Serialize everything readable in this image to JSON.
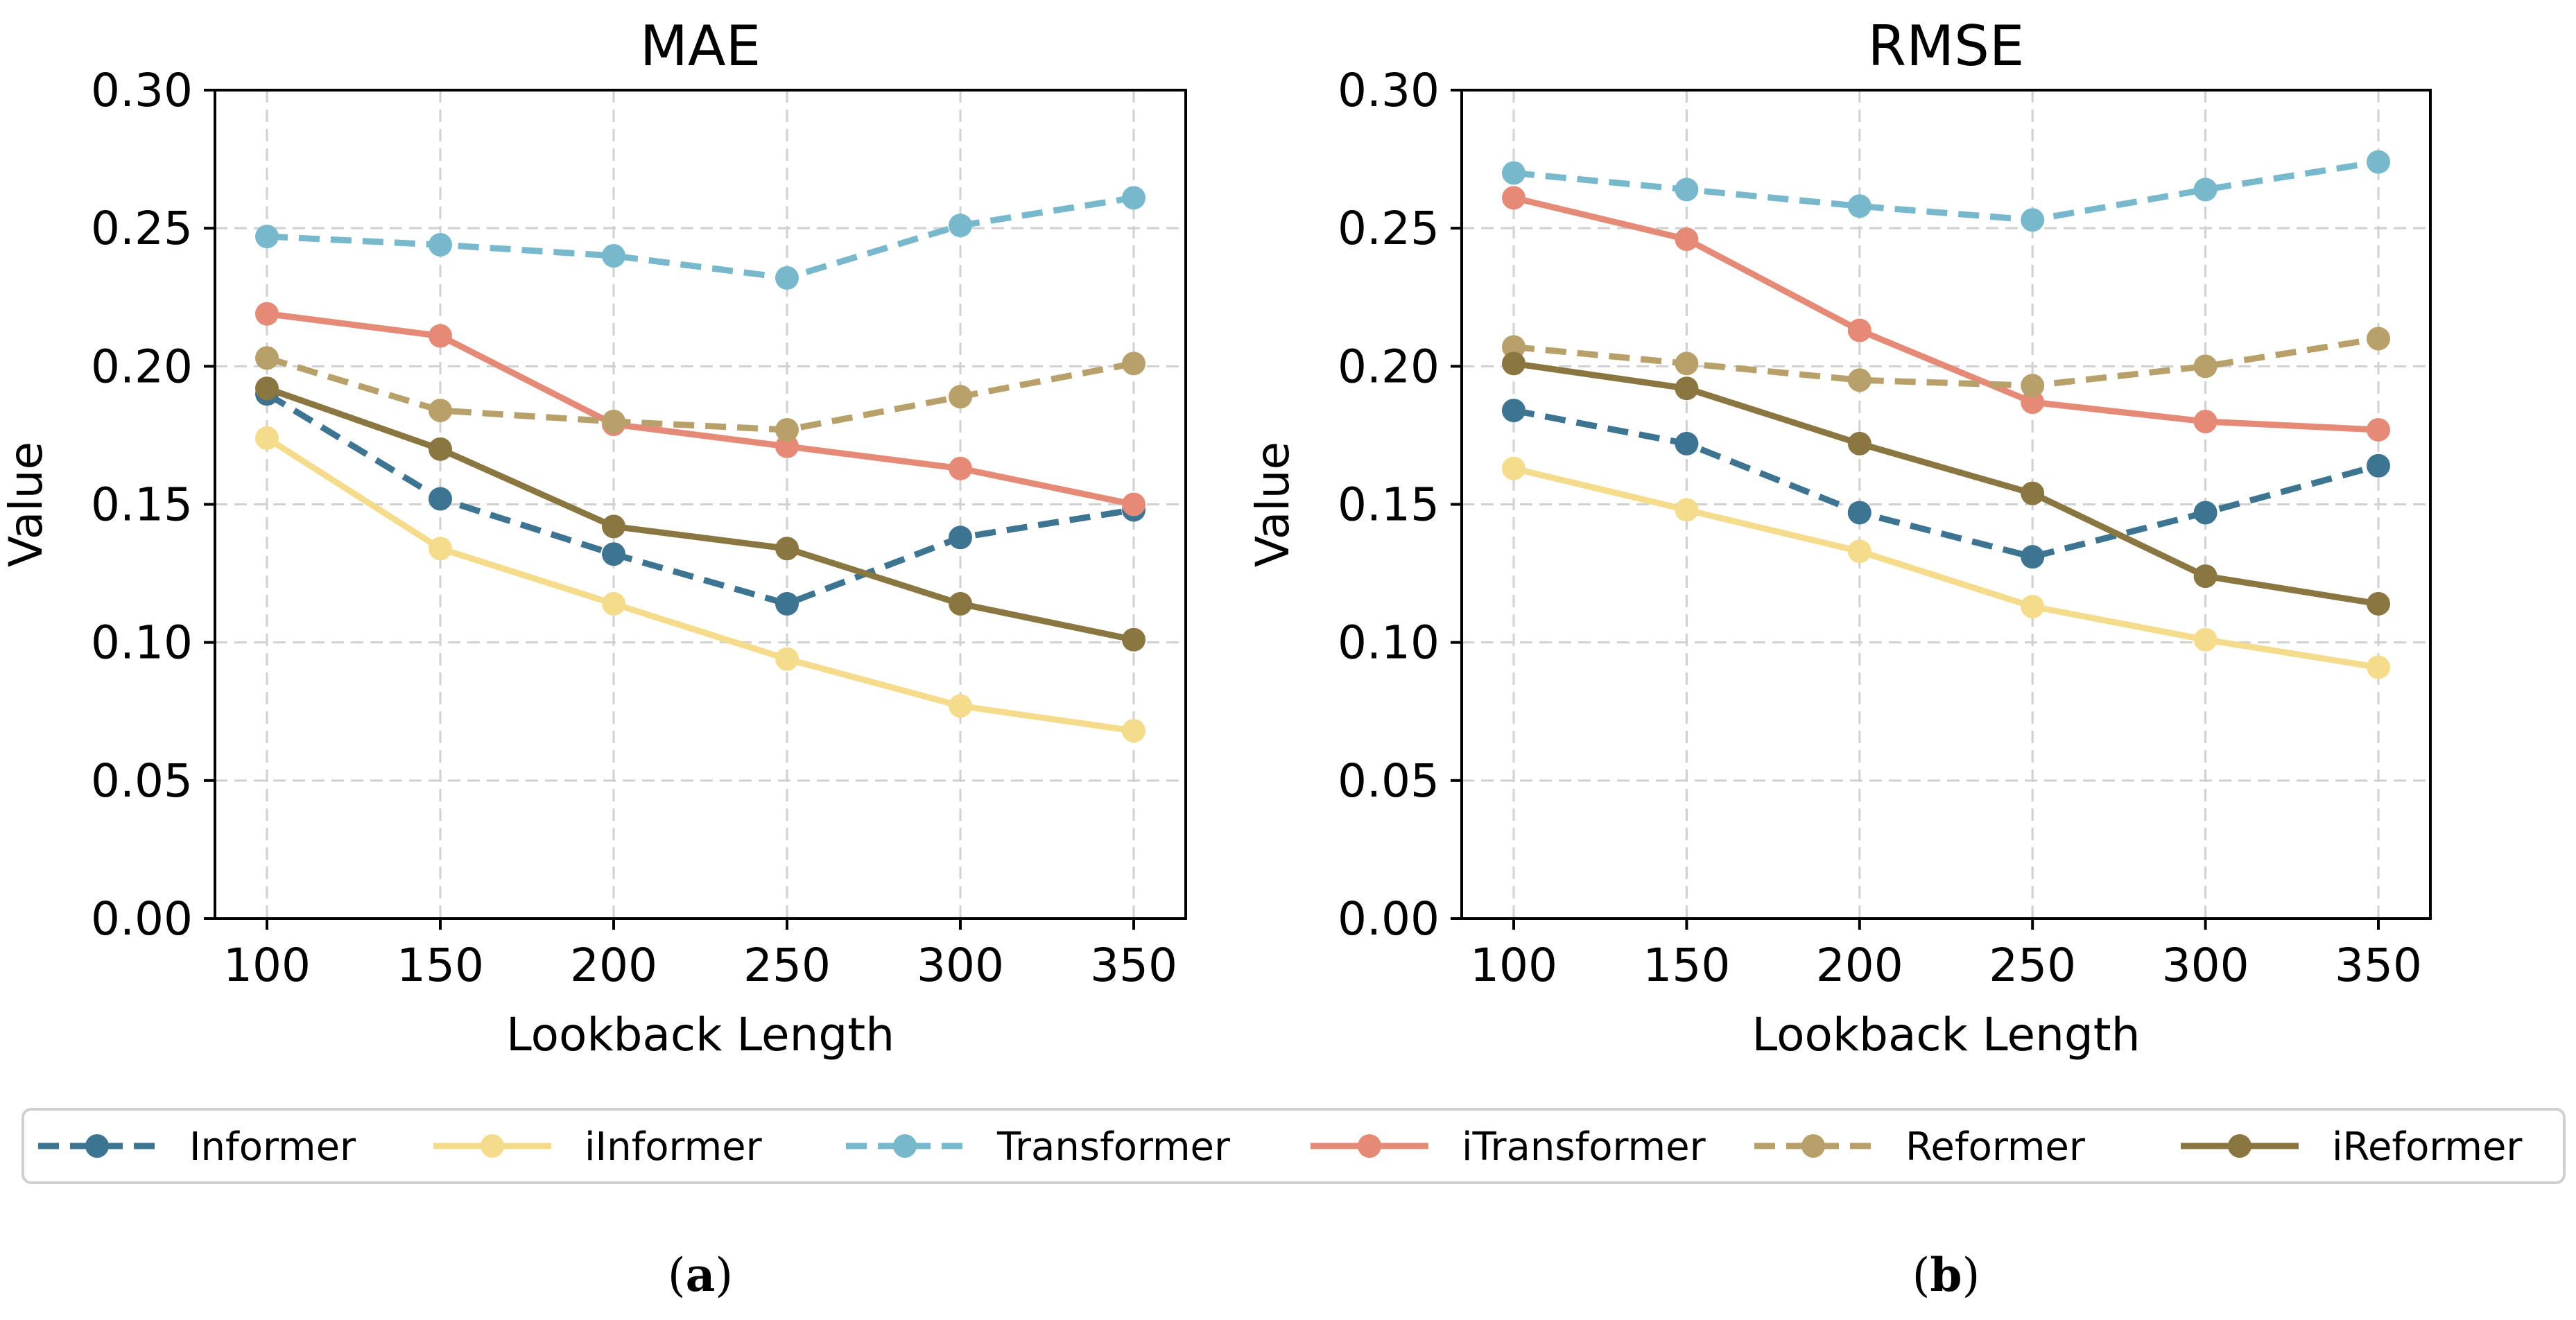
{
  "chart_data": [
    {
      "type": "line",
      "title": "MAE",
      "xlabel": "Lookback Length",
      "ylabel": "Value",
      "x": [
        100,
        150,
        200,
        250,
        300,
        350
      ],
      "xticks": [
        "100",
        "150",
        "200",
        "250",
        "300",
        "350"
      ],
      "yticks": [
        "0.00",
        "0.05",
        "0.10",
        "0.15",
        "0.20",
        "0.25",
        "0.30"
      ],
      "ylim": [
        0,
        0.3
      ],
      "grid": true,
      "caption": "(a)",
      "series": [
        {
          "name": "Informer",
          "style": "dashed",
          "color": "#3d7491",
          "values": [
            0.19,
            0.152,
            0.132,
            0.114,
            0.138,
            0.148
          ]
        },
        {
          "name": "iInformer",
          "style": "solid",
          "color": "#f5dc8c",
          "values": [
            0.174,
            0.134,
            0.114,
            0.094,
            0.077,
            0.068
          ]
        },
        {
          "name": "Transformer",
          "style": "dashed",
          "color": "#78b8cc",
          "values": [
            0.247,
            0.244,
            0.24,
            0.232,
            0.251,
            0.261
          ]
        },
        {
          "name": "iTransformer",
          "style": "solid",
          "color": "#e58a76",
          "values": [
            0.219,
            0.211,
            0.179,
            0.171,
            0.163,
            0.15
          ]
        },
        {
          "name": "Reformer",
          "style": "dashed",
          "color": "#b8a06a",
          "values": [
            0.203,
            0.184,
            0.18,
            0.177,
            0.189,
            0.201
          ]
        },
        {
          "name": "iReformer",
          "style": "solid",
          "color": "#8a7640",
          "values": [
            0.192,
            0.17,
            0.142,
            0.134,
            0.114,
            0.101
          ]
        }
      ]
    },
    {
      "type": "line",
      "title": "RMSE",
      "xlabel": "Lookback Length",
      "ylabel": "Value",
      "x": [
        100,
        150,
        200,
        250,
        300,
        350
      ],
      "xticks": [
        "100",
        "150",
        "200",
        "250",
        "300",
        "350"
      ],
      "yticks": [
        "0.00",
        "0.05",
        "0.10",
        "0.15",
        "0.20",
        "0.25",
        "0.30"
      ],
      "ylim": [
        0,
        0.3
      ],
      "grid": true,
      "caption": "(b)",
      "series": [
        {
          "name": "Informer",
          "style": "dashed",
          "color": "#3d7491",
          "values": [
            0.184,
            0.172,
            0.147,
            0.131,
            0.147,
            0.164
          ]
        },
        {
          "name": "iInformer",
          "style": "solid",
          "color": "#f5dc8c",
          "values": [
            0.163,
            0.148,
            0.133,
            0.113,
            0.101,
            0.091
          ]
        },
        {
          "name": "Transformer",
          "style": "dashed",
          "color": "#78b8cc",
          "values": [
            0.27,
            0.264,
            0.258,
            0.253,
            0.264,
            0.274
          ]
        },
        {
          "name": "iTransformer",
          "style": "solid",
          "color": "#e58a76",
          "values": [
            0.261,
            0.246,
            0.213,
            0.187,
            0.18,
            0.177
          ]
        },
        {
          "name": "Reformer",
          "style": "dashed",
          "color": "#b8a06a",
          "values": [
            0.207,
            0.201,
            0.195,
            0.193,
            0.2,
            0.21
          ]
        },
        {
          "name": "iReformer",
          "style": "solid",
          "color": "#8a7640",
          "values": [
            0.201,
            0.192,
            0.172,
            0.154,
            0.124,
            0.114
          ]
        }
      ]
    }
  ],
  "legend": {
    "placement": "bottom-center",
    "entries": [
      {
        "name": "Informer",
        "style": "dashed",
        "color": "#3d7491"
      },
      {
        "name": "iInformer",
        "style": "solid",
        "color": "#f5dc8c"
      },
      {
        "name": "Transformer",
        "style": "dashed",
        "color": "#78b8cc"
      },
      {
        "name": "iTransformer",
        "style": "solid",
        "color": "#e58a76"
      },
      {
        "name": "Reformer",
        "style": "dashed",
        "color": "#b8a06a"
      },
      {
        "name": "iReformer",
        "style": "solid",
        "color": "#8a7640"
      }
    ]
  }
}
